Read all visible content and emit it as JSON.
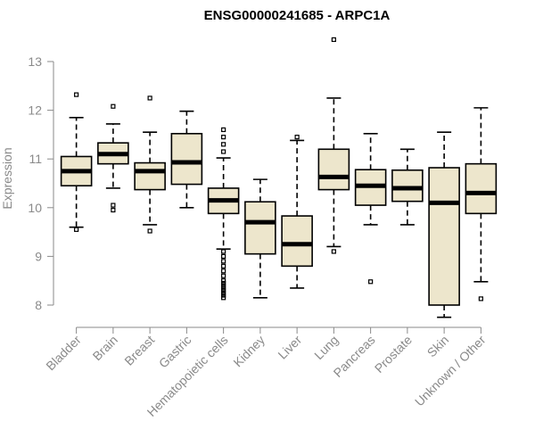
{
  "chart_data": {
    "type": "box",
    "title": "ENSG00000241685 - ARPC1A",
    "xlabel": "",
    "ylabel": "Expression",
    "ylim": [
      7.6,
      13.6
    ],
    "yticks": [
      8,
      9,
      10,
      11,
      12,
      13
    ],
    "ytick_labels": [
      "8",
      "9",
      "10",
      "11",
      "12",
      "13"
    ],
    "box_fill": "#ede6cc",
    "box_stroke": "#000000",
    "axis_color": "#8a8a8a",
    "categories": [
      "Bladder",
      "Brain",
      "Breast",
      "Gastric",
      "Hematopoietic cells",
      "Kidney",
      "Liver",
      "Lung",
      "Pancreas",
      "Prostate",
      "Skin",
      "Unknown / Other"
    ],
    "boxes": [
      {
        "name": "Bladder",
        "whisker_low": 9.6,
        "q1": 10.45,
        "median": 10.75,
        "q3": 11.05,
        "whisker_high": 11.85,
        "outliers": [
          9.55,
          12.32
        ]
      },
      {
        "name": "Brain",
        "whisker_low": 10.4,
        "q1": 10.9,
        "median": 11.1,
        "q3": 11.33,
        "whisker_high": 11.72,
        "outliers": [
          10.05,
          9.95,
          12.08
        ]
      },
      {
        "name": "Breast",
        "whisker_low": 9.65,
        "q1": 10.37,
        "median": 10.75,
        "q3": 10.92,
        "whisker_high": 11.55,
        "outliers": [
          9.52,
          12.25
        ]
      },
      {
        "name": "Gastric",
        "whisker_low": 10.0,
        "q1": 10.48,
        "median": 10.93,
        "q3": 11.52,
        "whisker_high": 11.98,
        "outliers": []
      },
      {
        "name": "Hematopoietic cells",
        "whisker_low": 9.15,
        "q1": 9.88,
        "median": 10.15,
        "q3": 10.4,
        "whisker_high": 11.02,
        "outliers": [
          11.15,
          11.3,
          11.45,
          11.6,
          9.1,
          9.0,
          8.9,
          8.8,
          8.7,
          8.6,
          8.5,
          8.45,
          8.4,
          8.35,
          8.3,
          8.25,
          8.2,
          8.15
        ]
      },
      {
        "name": "Kidney",
        "whisker_low": 8.15,
        "q1": 9.05,
        "median": 9.7,
        "q3": 10.12,
        "whisker_high": 10.58,
        "outliers": []
      },
      {
        "name": "Liver",
        "whisker_low": 8.35,
        "q1": 8.8,
        "median": 9.25,
        "q3": 9.83,
        "whisker_high": 11.38,
        "outliers": [
          11.45
        ]
      },
      {
        "name": "Lung",
        "whisker_low": 9.2,
        "q1": 10.37,
        "median": 10.63,
        "q3": 11.2,
        "whisker_high": 12.25,
        "outliers": [
          9.1,
          13.45
        ]
      },
      {
        "name": "Pancreas",
        "whisker_low": 9.65,
        "q1": 10.05,
        "median": 10.45,
        "q3": 10.78,
        "whisker_high": 11.52,
        "outliers": [
          8.48
        ]
      },
      {
        "name": "Prostate",
        "whisker_low": 9.65,
        "q1": 10.13,
        "median": 10.4,
        "q3": 10.77,
        "whisker_high": 11.2,
        "outliers": []
      },
      {
        "name": "Skin",
        "whisker_low": 7.75,
        "q1": 8.0,
        "median": 10.1,
        "q3": 10.82,
        "whisker_high": 11.55,
        "outliers": []
      },
      {
        "name": "Unknown / Other",
        "whisker_low": 8.48,
        "q1": 9.88,
        "median": 10.3,
        "q3": 10.9,
        "whisker_high": 12.05,
        "outliers": [
          8.13
        ]
      }
    ]
  }
}
